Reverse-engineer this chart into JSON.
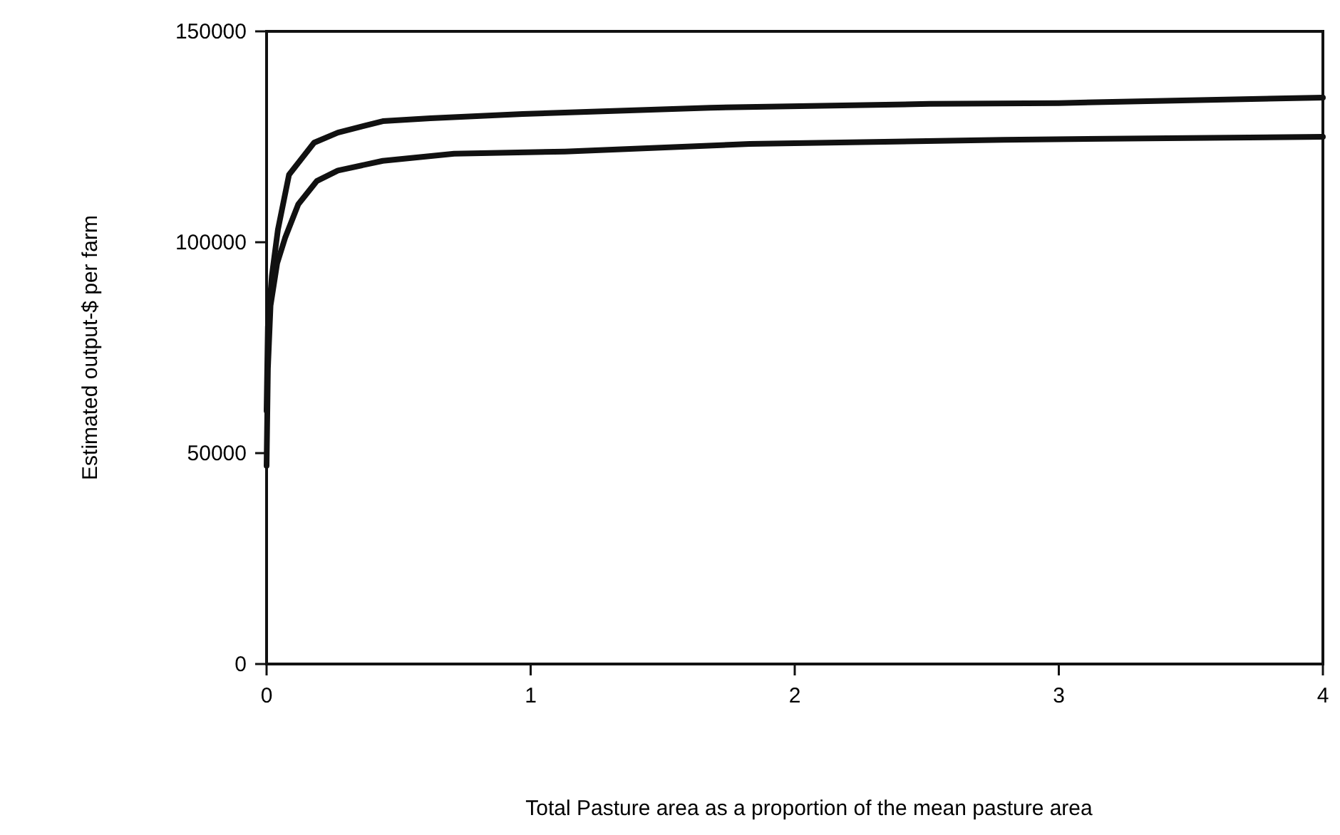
{
  "chart_data": {
    "type": "line",
    "xlabel": "Total Pasture area as a proportion of the mean pasture area",
    "ylabel": "Estimated output-$ per farm",
    "xlim": [
      0,
      4
    ],
    "xticks": [
      0,
      1,
      2,
      3,
      4
    ],
    "ylim": [
      0,
      150000
    ],
    "yticks": [
      0,
      50000,
      100000,
      150000
    ],
    "grid": false,
    "marker": "none",
    "line_style": "solid",
    "series": [
      {
        "color": "#111111",
        "x": [
          0,
          0.005,
          0.02,
          0.043,
          0.085,
          0.18,
          0.27,
          0.44,
          0.62,
          0.97,
          1.68,
          2.51,
          3.0,
          4
        ],
        "values": [
          60000,
          80000,
          92000,
          103000,
          116000,
          123600,
          126000,
          128700,
          129400,
          130400,
          131900,
          132800,
          133000,
          134300
        ]
      },
      {
        "color": "#111111",
        "x": [
          0,
          0.005,
          0.015,
          0.04,
          0.07,
          0.12,
          0.19,
          0.27,
          0.44,
          0.71,
          1.13,
          1.83,
          2.79,
          4
        ],
        "values": [
          47000,
          70000,
          85000,
          95000,
          101000,
          109000,
          114500,
          117000,
          119300,
          121000,
          121500,
          123300,
          124300,
          125000
        ]
      }
    ]
  }
}
